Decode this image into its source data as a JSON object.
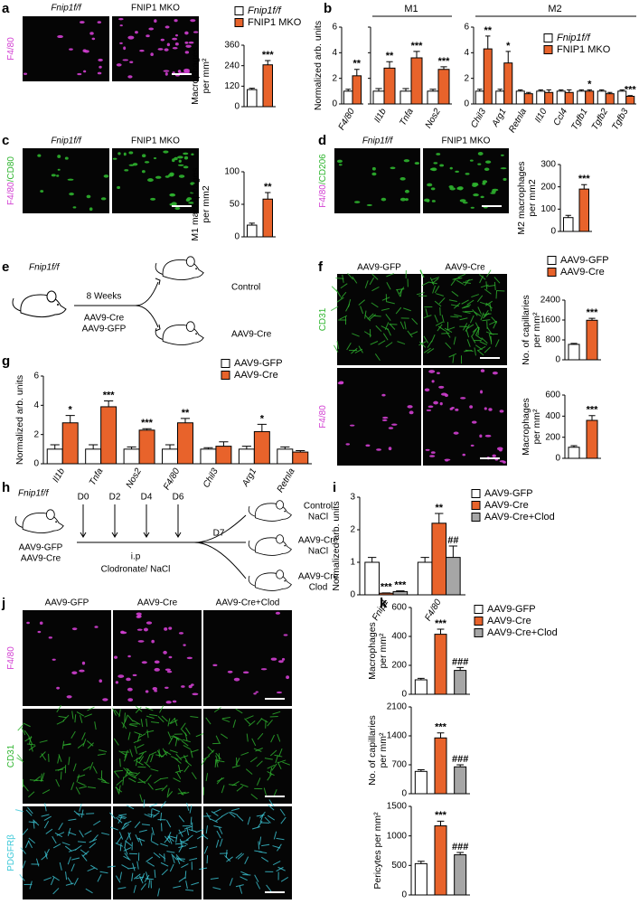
{
  "panel_labels": [
    "a",
    "b",
    "c",
    "d",
    "e",
    "f",
    "g",
    "h",
    "i",
    "j",
    "k"
  ],
  "images": [
    {
      "columns": [
        "Fnip1f/f",
        "FNIP1 MKO"
      ],
      "rows": [
        {
          "parts": [
            "F4/80"
          ],
          "colors": [
            "#d23fd2"
          ]
        }
      ]
    },
    {
      "columns": [
        "Fnip1f/f",
        "FNIP1 MKO"
      ],
      "rows": [
        {
          "parts": [
            "F4/80",
            "/CD80"
          ],
          "colors": [
            "#d23fd2",
            "#2fb52f"
          ]
        }
      ]
    },
    {
      "columns": [
        "Fnip1f/f",
        "FNIP1 MKO"
      ],
      "rows": [
        {
          "parts": [
            "F4/80",
            "/CD206"
          ],
          "colors": [
            "#d23fd2",
            "#2fb52f"
          ]
        }
      ]
    },
    {
      "columns": [
        "AAV9-GFP",
        "AAV9-Cre"
      ],
      "rows": [
        {
          "parts": [
            "CD31"
          ],
          "colors": [
            "#2fb52f"
          ]
        },
        {
          "parts": [
            "F4/80"
          ],
          "colors": [
            "#d23fd2"
          ]
        }
      ]
    },
    {
      "columns": [
        "AAV9-GFP",
        "AAV9-Cre",
        "AAV9-Cre+Clod"
      ],
      "rows": [
        {
          "parts": [
            "F4/80"
          ],
          "colors": [
            "#d23fd2"
          ]
        },
        {
          "parts": [
            "CD31"
          ],
          "colors": [
            "#2fb52f"
          ]
        },
        {
          "parts": [
            "PDGFRβ"
          ],
          "colors": [
            "#3cc8d8"
          ]
        }
      ]
    }
  ],
  "schematic_e": {
    "strain": "Fnip1f/f",
    "duration": "8 Weeks",
    "treatments": [
      "AAV9-Cre",
      "AAV9-GFP"
    ],
    "outcomes": [
      "Control",
      "AAV9-Cre"
    ]
  },
  "schematic_h": {
    "strain": "Fnip1f/f",
    "treatments": [
      "AAV9-GFP",
      "AAV9-Cre"
    ],
    "days": [
      "D0",
      "D2",
      "D4",
      "D6"
    ],
    "end_day": "D7",
    "route": "i.p",
    "agents": "Clodronate/ NaCl",
    "outcomes": [
      [
        "Control",
        "NaCl"
      ],
      [
        "AAV9-Cre",
        "NaCl"
      ],
      [
        "AAV9-Cre",
        "Clod"
      ]
    ]
  },
  "chart_data": [
    {
      "type": "bar",
      "ylabel": [
        "Macrophages",
        "per mm²"
      ],
      "ylim": [
        0,
        360
      ],
      "yticks": [
        0,
        120,
        240,
        360
      ],
      "series": [
        {
          "name": "Fnip1f/f",
          "color": "#ffffff",
          "values": [
            100
          ],
          "errors": [
            8
          ],
          "annotations": [
            null
          ]
        },
        {
          "name": "FNIP1 MKO",
          "color": "#e8632b",
          "values": [
            245
          ],
          "errors": [
            25
          ],
          "annotations": [
            "***"
          ]
        }
      ]
    },
    {
      "type": "bar",
      "ylabel": [
        "Normalized arb. units"
      ],
      "ylim": [
        0,
        6
      ],
      "yticks": [
        0,
        2,
        4,
        6
      ],
      "groups": [
        "M1",
        "M2"
      ],
      "categories": [
        "F4/80",
        "Il1b",
        "Tnfa",
        "Nos2",
        "Chil3",
        "Arg1",
        "Retnla",
        "Il10",
        "Ccl4",
        "Tgfb1",
        "Tgfb2",
        "Tgfb3"
      ],
      "series": [
        {
          "name": "Fnip1f/f",
          "color": "#ffffff",
          "values": [
            1,
            1,
            1,
            1,
            1,
            1,
            1,
            1,
            1,
            1,
            1,
            1
          ],
          "errors": [
            0.15,
            0.2,
            0.2,
            0.15,
            0.15,
            0.15,
            0.1,
            0.1,
            0.1,
            0.1,
            0.1,
            0.1
          ],
          "annotations": [
            null,
            null,
            null,
            null,
            null,
            null,
            null,
            null,
            null,
            null,
            null,
            null
          ]
        },
        {
          "name": "FNIP1 MKO",
          "color": "#e8632b",
          "values": [
            2.2,
            2.8,
            3.6,
            2.7,
            4.3,
            3.2,
            0.8,
            0.9,
            0.9,
            1.0,
            0.8,
            0.6
          ],
          "errors": [
            0.5,
            0.5,
            0.5,
            0.2,
            1.0,
            0.9,
            0.1,
            0.2,
            0.2,
            0.1,
            0.1,
            0.05
          ],
          "annotations": [
            "**",
            "**",
            "***",
            "***",
            "**",
            "*",
            null,
            null,
            null,
            "*",
            null,
            "***"
          ]
        }
      ]
    },
    {
      "type": "bar",
      "ylabel": [
        "M1 macrophages",
        "per mm2"
      ],
      "ylim": [
        0,
        100
      ],
      "yticks": [
        0,
        50,
        100
      ],
      "series": [
        {
          "color": "#ffffff",
          "values": [
            18
          ],
          "errors": [
            3
          ],
          "annotations": [
            null
          ]
        },
        {
          "color": "#e8632b",
          "values": [
            58
          ],
          "errors": [
            10
          ],
          "annotations": [
            "**"
          ]
        }
      ]
    },
    {
      "type": "bar",
      "ylabel": [
        "M2 macrophages",
        "per mm2"
      ],
      "ylim": [
        0,
        300
      ],
      "yticks": [
        0,
        100,
        200,
        300
      ],
      "series": [
        {
          "color": "#ffffff",
          "values": [
            62
          ],
          "errors": [
            10
          ],
          "annotations": [
            null
          ]
        },
        {
          "color": "#e8632b",
          "values": [
            190
          ],
          "errors": [
            20
          ],
          "annotations": [
            "***"
          ]
        }
      ]
    },
    {
      "type": "bar",
      "ylabel": [
        "No. of capillaries",
        "per mm²"
      ],
      "ylim": [
        0,
        2400
      ],
      "yticks": [
        0,
        800,
        1600,
        2400
      ],
      "series": [
        {
          "name": "AAV9-GFP",
          "color": "#ffffff",
          "values": [
            620
          ],
          "errors": [
            40
          ],
          "annotations": [
            null
          ]
        },
        {
          "name": "AAV9-Cre",
          "color": "#e8632b",
          "values": [
            1590
          ],
          "errors": [
            80
          ],
          "annotations": [
            "***"
          ]
        }
      ]
    },
    {
      "type": "bar",
      "ylabel": [
        "Macrophages",
        "per mm²"
      ],
      "ylim": [
        0,
        600
      ],
      "yticks": [
        0,
        200,
        400,
        600
      ],
      "series": [
        {
          "color": "#ffffff",
          "values": [
            105
          ],
          "errors": [
            15
          ],
          "annotations": [
            null
          ]
        },
        {
          "color": "#e8632b",
          "values": [
            360
          ],
          "errors": [
            45
          ],
          "annotations": [
            "***"
          ]
        }
      ]
    },
    {
      "type": "bar",
      "ylabel": [
        "Normalized arb. units"
      ],
      "ylim": [
        0,
        6
      ],
      "yticks": [
        0,
        2,
        4,
        6
      ],
      "categories": [
        "Il1b",
        "Tnfa",
        "Nos2",
        "F4/80",
        "Chil3",
        "Arg1",
        "Retnla"
      ],
      "series": [
        {
          "name": "AAV9-GFP",
          "color": "#ffffff",
          "values": [
            1,
            1,
            1,
            1,
            1,
            1,
            1
          ],
          "errors": [
            0.3,
            0.3,
            0.15,
            0.3,
            0.1,
            0.2,
            0.15
          ],
          "annotations": [
            null,
            null,
            null,
            null,
            null,
            null,
            null
          ]
        },
        {
          "name": "AAV9-Cre",
          "color": "#e8632b",
          "values": [
            2.8,
            3.9,
            2.3,
            2.8,
            1.2,
            2.2,
            0.8
          ],
          "errors": [
            0.5,
            0.4,
            0.1,
            0.3,
            0.3,
            0.5,
            0.1
          ],
          "annotations": [
            "*",
            "***",
            "***",
            "**",
            null,
            "*",
            null
          ]
        }
      ]
    },
    {
      "type": "bar",
      "ylabel": [
        "Normalized arb. units"
      ],
      "ylim": [
        0,
        3
      ],
      "yticks": [
        0,
        1,
        2,
        3
      ],
      "categories": [
        "Fnip1",
        "F4/80"
      ],
      "series": [
        {
          "name": "AAV9-GFP",
          "color": "#ffffff",
          "values": [
            1.0,
            1.0
          ],
          "errors": [
            0.15,
            0.15
          ],
          "annotations": [
            null,
            null
          ]
        },
        {
          "name": "AAV9-Cre",
          "color": "#e8632b",
          "values": [
            0.05,
            2.2
          ],
          "errors": [
            0.01,
            0.3
          ],
          "annotations": [
            "***",
            "**"
          ]
        },
        {
          "name": "AAV9-Cre+Clod",
          "color": "#a6a6a6",
          "values": [
            0.1,
            1.15
          ],
          "errors": [
            0.02,
            0.35
          ],
          "annotations": [
            "***",
            "##"
          ]
        }
      ]
    },
    {
      "type": "bar",
      "ylabel": [
        "Macrophages",
        "per mm²"
      ],
      "ylim": [
        0,
        600
      ],
      "yticks": [
        0,
        200,
        400,
        600
      ],
      "series": [
        {
          "name": "AAV9-GFP",
          "color": "#ffffff",
          "values": [
            100
          ],
          "errors": [
            10
          ],
          "annotations": [
            null
          ]
        },
        {
          "name": "AAV9-Cre",
          "color": "#e8632b",
          "values": [
            415
          ],
          "errors": [
            35
          ],
          "annotations": [
            "***"
          ]
        },
        {
          "name": "AAV9-Cre+Clod",
          "color": "#a6a6a6",
          "values": [
            165
          ],
          "errors": [
            20
          ],
          "annotations": [
            "###"
          ]
        }
      ]
    },
    {
      "type": "bar",
      "ylabel": [
        "No. of capillaries",
        "per mm²"
      ],
      "ylim": [
        0,
        2100
      ],
      "yticks": [
        0,
        700,
        1400,
        2100
      ],
      "series": [
        {
          "color": "#ffffff",
          "values": [
            540
          ],
          "errors": [
            40
          ],
          "annotations": [
            null
          ]
        },
        {
          "color": "#e8632b",
          "values": [
            1350
          ],
          "errors": [
            120
          ],
          "annotations": [
            "***"
          ]
        },
        {
          "color": "#a6a6a6",
          "values": [
            650
          ],
          "errors": [
            50
          ],
          "annotations": [
            "###"
          ]
        }
      ]
    },
    {
      "type": "bar",
      "ylabel": [
        "Pericytes per mm²"
      ],
      "ylim": [
        0,
        1500
      ],
      "yticks": [
        0,
        500,
        1000,
        1500
      ],
      "series": [
        {
          "color": "#ffffff",
          "values": [
            530
          ],
          "errors": [
            40
          ],
          "annotations": [
            null
          ]
        },
        {
          "color": "#e8632b",
          "values": [
            1170
          ],
          "errors": [
            80
          ],
          "annotations": [
            "***"
          ]
        },
        {
          "color": "#a6a6a6",
          "values": [
            680
          ],
          "errors": [
            40
          ],
          "annotations": [
            "###"
          ]
        }
      ]
    }
  ]
}
